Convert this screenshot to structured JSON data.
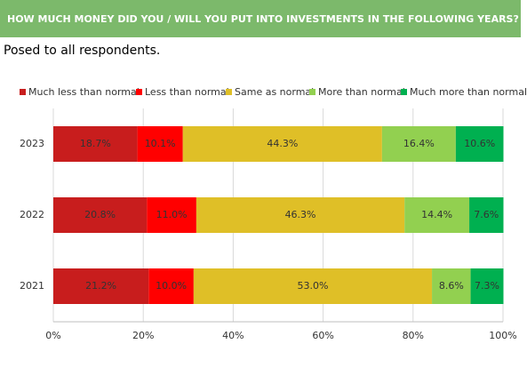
{
  "header": {
    "title": "HOW MUCH MONEY DID YOU / WILL YOU PUT INTO INVESTMENTS IN THE FOLLOWING YEARS?",
    "subtitle": "Posed to all respondents."
  },
  "chart_data": {
    "type": "stacked-bar-horizontal",
    "categories": [
      "2023",
      "2022",
      "2021"
    ],
    "series": [
      {
        "name": "Much less than normal",
        "color": "#c81d1d",
        "values": [
          18.7,
          20.8,
          21.2
        ],
        "value_labels": [
          "18.7%",
          "20.8%",
          "21.2%"
        ]
      },
      {
        "name": "Less than normal",
        "color": "#ff0000",
        "values": [
          10.1,
          11.0,
          10.0
        ],
        "value_labels": [
          "10.1%",
          "11.0%",
          "10.0%"
        ]
      },
      {
        "name": "Same as normal",
        "color": "#dfbf27",
        "values": [
          44.3,
          46.3,
          53.0
        ],
        "value_labels": [
          "44.3%",
          "46.3%",
          "53.0%"
        ]
      },
      {
        "name": "More than normal",
        "color": "#92d050",
        "values": [
          16.4,
          14.4,
          8.6
        ],
        "value_labels": [
          "16.4%",
          "14.4%",
          "8.6%"
        ]
      },
      {
        "name": "Much more than normal",
        "color": "#00b050",
        "values": [
          10.6,
          7.6,
          7.3
        ],
        "value_labels": [
          "10.6%",
          "7.6%",
          "7.3%"
        ]
      }
    ],
    "xlim": [
      0,
      100
    ],
    "xticks": [
      {
        "value": 0,
        "label": "0%"
      },
      {
        "value": 20,
        "label": "20%"
      },
      {
        "value": 40,
        "label": "40%"
      },
      {
        "value": 60,
        "label": "60%"
      },
      {
        "value": 80,
        "label": "80%"
      },
      {
        "value": 100,
        "label": "100%"
      }
    ],
    "grid": true,
    "legend": "top"
  }
}
